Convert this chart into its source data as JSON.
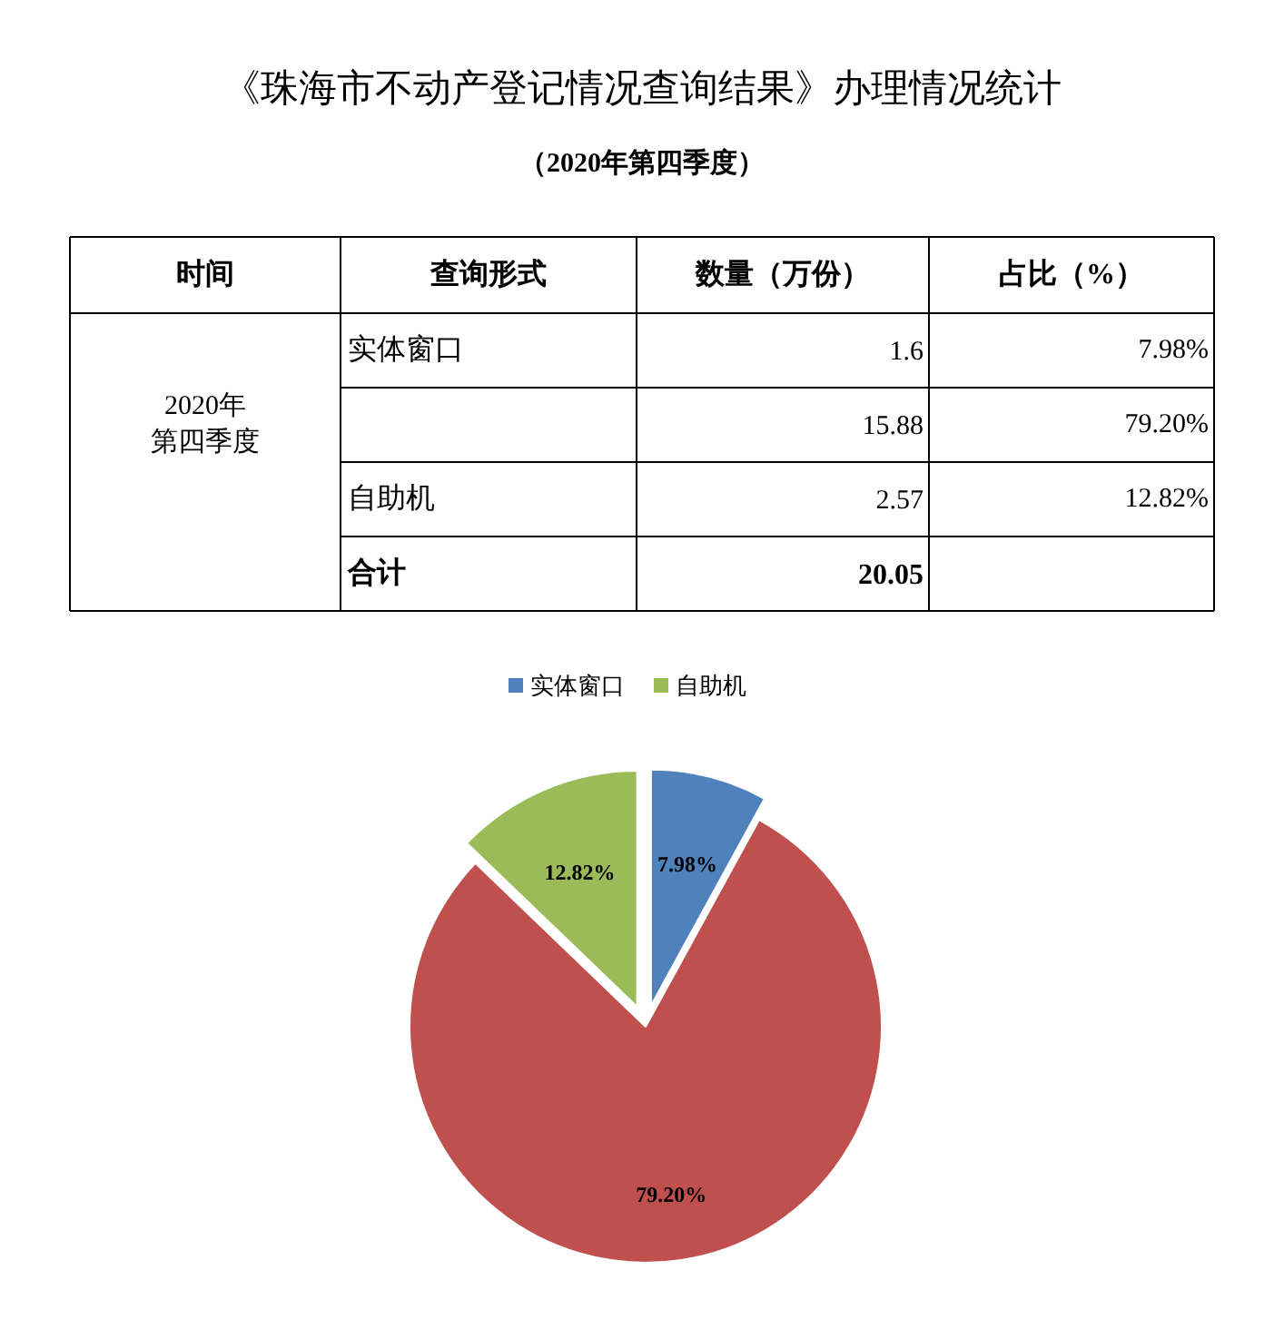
{
  "chart_data": {
    "type": "pie",
    "title": "《珠海市不动产登记情况查询结果》办理情况统计",
    "subtitle": "（2020年第四季度）",
    "categories": [
      "实体窗口",
      null,
      "自助机"
    ],
    "values": [
      7.98,
      79.2,
      12.82
    ],
    "value_labels": [
      "7.98%",
      "79.20%",
      "12.82%"
    ],
    "colors": [
      "#4f81bd",
      "#c0504d",
      "#9bbb59"
    ],
    "totals": [
      "20.05"
    ],
    "annotations": [
      "时间",
      "查询形式",
      "数量（万份）",
      "占比（%）",
      "2020年",
      "第四季度",
      "合计",
      "1.6",
      "15.88",
      "2.57"
    ],
    "legend": "top"
  }
}
